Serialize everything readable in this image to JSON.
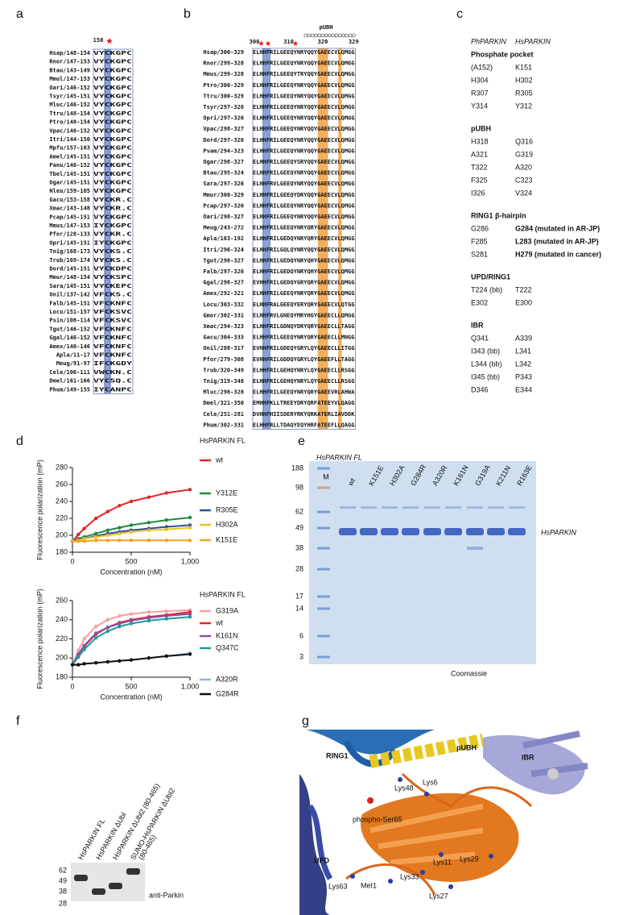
{
  "panel_labels": [
    "a",
    "b",
    "c",
    "d",
    "e",
    "f",
    "g"
  ],
  "alignment_a": {
    "ruler": [
      "150"
    ],
    "rows": [
      [
        "Hsap/148-154",
        "VYCKGPC"
      ],
      [
        "Rnor/147-153",
        "VYCKGPC"
      ],
      [
        "Btau/143-149",
        "VYCKGPC"
      ],
      [
        "Mmul/147-153",
        "VYCKGPC"
      ],
      [
        "Oari/146-152",
        "VYCKGPC"
      ],
      [
        "Tsyr/145-151",
        "VYCKGPC"
      ],
      [
        "Mluc/146-152",
        "VYCKGPC"
      ],
      [
        "Ttru/148-154",
        "VYCKGPC"
      ],
      [
        "Ptro/148-154",
        "VYCKGPC"
      ],
      [
        "Vpac/146-152",
        "VYCKGPC"
      ],
      [
        "Itri/144-150",
        "VYCKGPC"
      ],
      [
        "Mpfu/157-163",
        "VYCKGPC"
      ],
      [
        "Amel/145-151",
        "VYCKGPC"
      ],
      [
        "Panu/146-152",
        "VYCKGPC"
      ],
      [
        "Tbel/145-151",
        "VYCKGPC"
      ],
      [
        "Ogar/145-151",
        "VYCKGPC"
      ],
      [
        "Nleu/159-165",
        "VYCKGPC"
      ],
      [
        "Gacu/153-158",
        "VYCKR.C"
      ],
      [
        "Xmac/143-148",
        "VYCKR.C"
      ],
      [
        "Pcap/145-151",
        "VYCKGPC"
      ],
      [
        "Mmus/147-153",
        "IYCKGPC"
      ],
      [
        "Pfor/128-133",
        "VYCKR.C"
      ],
      [
        "Opri/145-151",
        "IYCKGPC"
      ],
      [
        "Tnig/168-173",
        "VYCKS.C"
      ],
      [
        "Trub/169-174",
        "VYCKS.C"
      ],
      [
        "Dord/145-151",
        "VYCKDPC"
      ],
      [
        "Mmur/148-154",
        "VYCKSPC"
      ],
      [
        "Sara/145-151",
        "VYCKEPC"
      ],
      [
        "Onil/137-142",
        "VFCKS.C"
      ],
      [
        "Falb/145-151",
        "VFCKNFC"
      ],
      [
        "Locu/151-157",
        "VFCKSVC"
      ],
      [
        "Psin/108-114",
        "VFCKSVC"
      ],
      [
        "Tgut/146-152",
        "VFCKNFC"
      ],
      [
        "Ggal/146-152",
        "VFCKNFC"
      ],
      [
        "Amex/140-146",
        "VFCKNFC"
      ],
      [
        "Apla/11-17",
        "VFCKNFC"
      ],
      [
        "Meug/91-97",
        "IFCKGDY"
      ],
      [
        "Cele/106-111",
        "VWCKN.C"
      ],
      [
        "Dmel/161-166",
        "VYCSQ.C"
      ],
      [
        "Phum/149-155",
        "IYCANPC"
      ]
    ]
  },
  "alignment_b": {
    "ruler": [
      "300",
      "310",
      "320",
      "329"
    ],
    "motif": "pUBH",
    "rows": [
      [
        "Hsap/300-329",
        "ELHHFRILGEEQYNRYQQYGAEECVLQMGG"
      ],
      [
        "Rnor/299-328",
        "ELHHFRILGEEQYNRYQQYGAEECVLQMGG"
      ],
      [
        "Mmus/299-328",
        "ELHHFRILGEEQYTRYQQYGAEECVLQMGG"
      ],
      [
        "Ptro/300-329",
        "ELHHFRILGEEQYNRYQQYGAEECVLQMGG"
      ],
      [
        "Ttru/300-329",
        "ELHHFRILGEEQYNRYQQYGAEECVLQMGG"
      ],
      [
        "Tsyr/297-326",
        "ELHHFRILGEEQYNRYQQYGAEECVLQMGG"
      ],
      [
        "Opri/297-326",
        "ELHHFRILGEEQYNRYQQYGAEECVLQMGG"
      ],
      [
        "Vpac/298-327",
        "ELHHFRILGEEQYNRYQQYGAEECVLQMGG"
      ],
      [
        "Dord/297-326",
        "ELHHFRILGEEQYNRYQQYGAEECVLQMGG"
      ],
      [
        "Pvam/294-323",
        "ELHHFRILGEEQYNRYQQYGAEECVLQMGG"
      ],
      [
        "Ogar/298-327",
        "ELHHFRILGEEQYSRYQQYGAEECVLQMGG"
      ],
      [
        "Btau/295-324",
        "ELHHFRILGEEQYNRYQQYGAEECVLQMGG"
      ],
      [
        "Sara/297-326",
        "ELHHFRVLGEEQYNRYQQYGAEECVLQMGG"
      ],
      [
        "Mmur/300-329",
        "ELHHFRILGEEQYDRYQQYGAEECVLQMGG"
      ],
      [
        "Pcap/297-326",
        "ELHHFRILGEEQYNRYQQYGAEECVLQMGG"
      ],
      [
        "Oari/298-327",
        "ELHHFRILGEEQYNRYQQYGAEECVLQMGG"
      ],
      [
        "Meug/243-272",
        "ELHHFRILGEEQYNRYQRYGAEECVLQMGG"
      ],
      [
        "Apla/163-192",
        "ELHHFRILGEDQYNRYQRYGAEECVLQMGG"
      ],
      [
        "Itri/296-324",
        "ELHHFRILGQLQYNRYQQYGAEECVLQMGG"
      ],
      [
        "Tgut/298-327",
        "ELHHFRILGEDQYNRYQHYGAEECVLQMGG"
      ],
      [
        "Falb/297-326",
        "ELHHFRILGEDQYNRYQHYGAEECVLQMGG"
      ],
      [
        "Ggal/298-327",
        "EVHHFRILGEDQYGRYQRYGAEECVLQMGG"
      ],
      [
        "Amex/292-321",
        "ELHHFRILGEEQYNRYQRYGAEECVLQMGG"
      ],
      [
        "Locu/303-332",
        "ELHHFRALGEEQYERYQRYGAEECVLQTGG"
      ],
      [
        "Gmor/302-331",
        "ELHHFRVLGNEQYMRYHGYGAEECLLQMGG"
      ],
      [
        "Xmac/294-323",
        "ELHHFRILGDNQYDRYQRYGAEECLLTAGG"
      ],
      [
        "Gacu/304-333",
        "ELHHFRILGEEQYNRYQRYGAEECLLMNGG"
      ],
      [
        "Onil/288-317",
        "EVHHFRILGDEQYGRYLQYGAEECLLITGG"
      ],
      [
        "Pfor/279-308",
        "EVHHFRILGDDQYGRYLQYGAEEFLLTAGG"
      ],
      [
        "Trub/320-349",
        "ELHHFRILGEHQYNRYLQYGAEECLLRSGG"
      ],
      [
        "Tnig/319-348",
        "ELHHFRILGEHQYNRYLQYGAEECLLRSGG"
      ],
      [
        "Mluc/298-328",
        "ELHHFRILGEEQYNRYQRYGAEEVRLAHWA"
      ],
      [
        "Dmel/321-350",
        "EMHHFKLLTREEYDRYQRFATEEYVLQAGG"
      ],
      [
        "Cele/251-281",
        "DVHHFHIISDERYRKYQRKATERLIAVDDK"
      ],
      [
        "Phum/302-331",
        "ELHHFRLLTDAQYEQYHRFATEEFLLQAGG"
      ]
    ]
  },
  "table_c": {
    "header": [
      "PhPARKIN",
      "HsPARKIN"
    ],
    "sections": [
      {
        "title": "Phosphate pocket",
        "rows": [
          [
            "(A152)",
            "K151"
          ],
          [
            "H304",
            "H302"
          ],
          [
            "R307",
            "R305"
          ],
          [
            "Y314",
            "Y312"
          ]
        ]
      },
      {
        "title": "pUBH",
        "rows": [
          [
            "H318",
            "Q316"
          ],
          [
            "A321",
            "G319"
          ],
          [
            "T322",
            "A320"
          ],
          [
            "F325",
            "C323"
          ],
          [
            "I326",
            "V324"
          ]
        ]
      },
      {
        "title": "RING1 β-hairpin",
        "value_color": "#2a9d3f",
        "rows": [
          [
            "G286",
            "G284 (mutated in AR-JP)"
          ],
          [
            "F285",
            "L283 (mutated in AR-JP)"
          ],
          [
            "S281",
            "H279 (mutated in cancer)"
          ]
        ]
      },
      {
        "title": "UPD/RING1",
        "rows": [
          [
            "T224 (bb)",
            "T222"
          ],
          [
            "E302",
            "E300"
          ]
        ]
      },
      {
        "title": "IBR",
        "rows": [
          [
            "Q341",
            "A339"
          ],
          [
            "I343 (bb)",
            "L341"
          ],
          [
            "L344 (bb)",
            "L342"
          ],
          [
            "I345 (bb)",
            "P343"
          ],
          [
            "D346",
            "E344"
          ]
        ]
      }
    ]
  },
  "chart_data": [
    {
      "type": "line",
      "legend_title": "HsPARKIN FL",
      "xlabel": "Concentration (nM)",
      "ylabel": "Fluorescence polarization (mP)",
      "x": [
        0,
        50,
        100,
        200,
        300,
        400,
        500,
        650,
        800,
        1000
      ],
      "xlim": [
        0,
        1000
      ],
      "ylim": [
        180,
        280
      ],
      "xticks": [
        0,
        500,
        {
          "value": 1000,
          "label": "1,000"
        }
      ],
      "yticks": [
        180,
        200,
        220,
        240,
        260,
        280
      ],
      "series": [
        {
          "name": "wt",
          "color": "#e32626",
          "values": [
            193,
            201,
            208,
            220,
            228,
            235,
            240,
            245,
            250,
            254
          ]
        },
        {
          "name": "Y312E",
          "color": "#1f8a3c",
          "values": [
            193,
            196,
            198,
            202,
            206,
            209,
            212,
            215,
            218,
            221
          ]
        },
        {
          "name": "R305E",
          "color": "#2e4fa0",
          "values": [
            193,
            195,
            196,
            199,
            202,
            204,
            206,
            208,
            210,
            212
          ]
        },
        {
          "name": "H302A",
          "color": "#e8c22a",
          "values": [
            193,
            194,
            196,
            198,
            200,
            202,
            204,
            206,
            207,
            209
          ]
        },
        {
          "name": "K151E",
          "color": "#f5a020",
          "values": [
            193,
            193,
            193,
            194,
            194,
            194,
            194,
            194,
            194,
            194
          ]
        }
      ]
    },
    {
      "type": "line",
      "legend_title": "HsPARKIN FL",
      "xlabel": "Concentration (nM)",
      "ylabel": "Fluorescence polarization (mP)",
      "x": [
        0,
        50,
        100,
        200,
        300,
        400,
        500,
        650,
        800,
        1000
      ],
      "xlim": [
        0,
        1000
      ],
      "ylim": [
        180,
        260
      ],
      "xticks": [
        0,
        500,
        {
          "value": 1000,
          "label": "1,000"
        }
      ],
      "yticks": [
        180,
        200,
        220,
        240,
        260
      ],
      "series": [
        {
          "name": "G319A",
          "color": "#f4a0a0",
          "values": [
            193,
            208,
            220,
            233,
            240,
            244,
            246,
            248,
            249,
            250
          ]
        },
        {
          "name": "wt",
          "color": "#e32626",
          "values": [
            193,
            203,
            212,
            225,
            232,
            237,
            240,
            243,
            245,
            248
          ]
        },
        {
          "name": "K161N",
          "color": "#8a4fa8",
          "values": [
            193,
            204,
            213,
            226,
            232,
            236,
            239,
            242,
            244,
            246
          ]
        },
        {
          "name": "Q347C",
          "color": "#1f9a9a",
          "values": [
            193,
            201,
            209,
            221,
            228,
            233,
            236,
            239,
            241,
            243
          ]
        },
        {
          "name": "A320R",
          "color": "#8fb9e0",
          "values": [
            193,
            193,
            194,
            195,
            196,
            197,
            198,
            200,
            202,
            205
          ]
        },
        {
          "name": "G284R",
          "color": "#111111",
          "values": [
            193,
            193,
            194,
            195,
            196,
            197,
            198,
            200,
            202,
            204
          ]
        }
      ]
    }
  ],
  "gel_e": {
    "title": "HsPARKIN FL",
    "lanes": [
      "M",
      "wt",
      "K151E",
      "H302A",
      "G284R",
      "A320R",
      "K161N",
      "G319A",
      "K211N",
      "R163E"
    ],
    "markers": [
      188,
      98,
      62,
      49,
      38,
      28,
      17,
      14,
      6,
      3
    ],
    "band_label": "HsPARKIN",
    "stain": "Coomassie"
  },
  "blot_f": {
    "lanes": [
      [
        "HsPARKIN FL"
      ],
      [
        "HsPARKIN ΔUbl"
      ],
      [
        "HsPARKIN ΔUbl2 (80-465)"
      ],
      [
        "SUMO-HsPARKIN ΔUbl2",
        "(80-465)"
      ]
    ],
    "markers": [
      62,
      49,
      38,
      28
    ],
    "antibody": "anti-Parkin"
  },
  "structure_g": {
    "domains": [
      "RING1",
      "pUBH",
      "IBR",
      "UPD"
    ],
    "residues": [
      "Lys48",
      "Lys6",
      "phospho-Ser65",
      "Lys11",
      "Lys29",
      "Lys63",
      "Met1",
      "Lys33",
      "Lys27"
    ]
  }
}
